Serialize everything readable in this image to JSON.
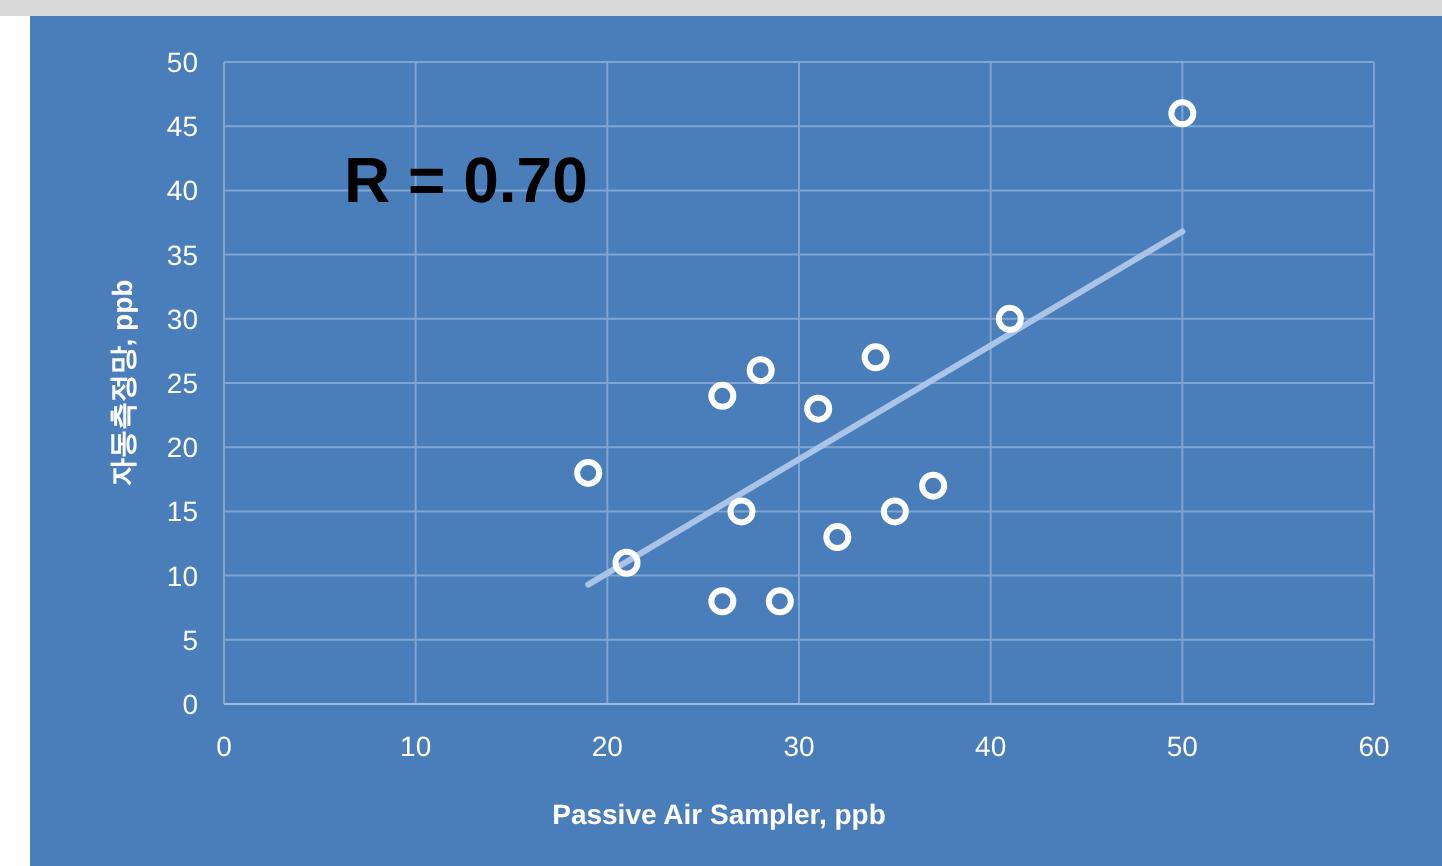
{
  "chart_data": {
    "type": "scatter",
    "xlabel": "Passive Air Sampler, ppb",
    "ylabel": "자동측정망, ppb",
    "annotations": [
      "R = 0.70"
    ],
    "xlim": [
      0,
      60
    ],
    "ylim": [
      0,
      50
    ],
    "xticks": [
      0,
      10,
      20,
      30,
      40,
      50,
      60
    ],
    "yticks": [
      0,
      5,
      10,
      15,
      20,
      25,
      30,
      35,
      40,
      45,
      50
    ],
    "grid": true,
    "series": [
      {
        "color": "#ffffff",
        "marker": "circle",
        "x": [
          19,
          21,
          26,
          26,
          27,
          28,
          29,
          31,
          32,
          34,
          35,
          37,
          41,
          50
        ],
        "values": [
          18,
          11,
          8,
          24,
          15,
          26,
          8,
          23,
          13,
          27,
          15,
          17,
          30,
          46
        ]
      },
      {
        "type": "line",
        "color": "#a9c4e6",
        "marker": "none",
        "x": [
          19,
          50
        ],
        "values": [
          9.3,
          36.8
        ]
      }
    ]
  }
}
